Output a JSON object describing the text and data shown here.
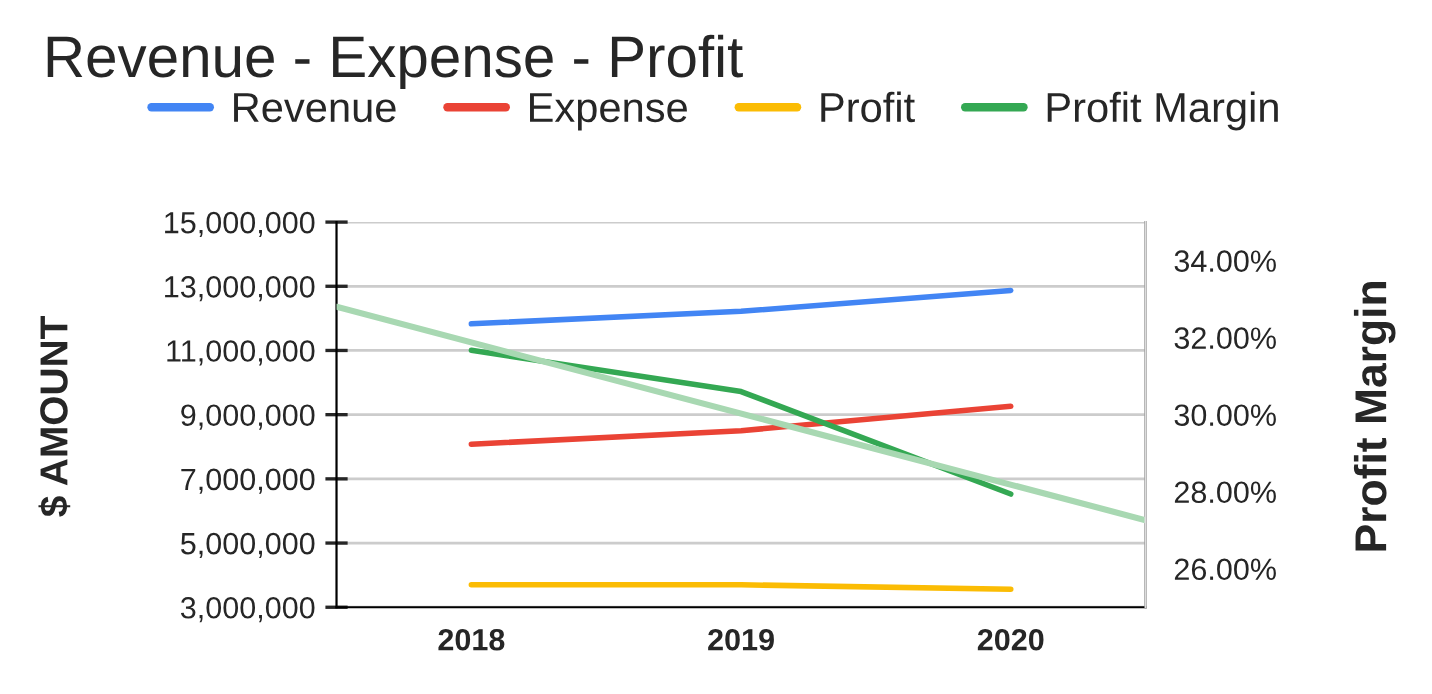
{
  "chart_data": {
    "type": "line",
    "title": "Revenue - Expense - Profit",
    "ylabel": "$ AMOUNT",
    "y2label": "Profit Margin",
    "x": [
      2018,
      2019,
      2020
    ],
    "xlim": [
      2017.5,
      2020.5
    ],
    "xticks": [
      2018,
      2019,
      2020
    ],
    "ylim": [
      3000000,
      15000000
    ],
    "yticks": [
      {
        "value": 3000000,
        "label": "3,000,000"
      },
      {
        "value": 5000000,
        "label": "5,000,000"
      },
      {
        "value": 7000000,
        "label": "7,000,000"
      },
      {
        "value": 9000000,
        "label": "9,000,000"
      },
      {
        "value": 11000000,
        "label": "11,000,000"
      },
      {
        "value": 13000000,
        "label": "13,000,000"
      },
      {
        "value": 15000000,
        "label": "15,000,000"
      }
    ],
    "y2lim": [
      25,
      35
    ],
    "y2ticks": [
      {
        "value": 26,
        "label": "26.00%"
      },
      {
        "value": 28,
        "label": "28.00%"
      },
      {
        "value": 30,
        "label": "30.00%"
      },
      {
        "value": 32,
        "label": "32.00%"
      },
      {
        "value": 34,
        "label": "34.00%"
      }
    ],
    "grid": "y",
    "legend": "top",
    "marker": "none",
    "line_style": "solid",
    "series": [
      {
        "name": "Revenue",
        "color": "#4285f4",
        "values": [
          11830000,
          12220000,
          12870000
        ]
      },
      {
        "name": "Expense",
        "color": "#ea4335",
        "values": [
          8080000,
          8500000,
          9260000
        ]
      },
      {
        "name": "Profit",
        "color": "#fbbc04",
        "values": [
          3700000,
          3700000,
          3560000
        ]
      },
      {
        "name": "Profit Margin",
        "color": "#34a853",
        "axis": "y2",
        "values": [
          31.67,
          30.6,
          27.94
        ]
      },
      {
        "color": "#a8d8b2",
        "axis": "y2",
        "x": [
          2017.5,
          2020.5
        ],
        "values": [
          32.8,
          27.26
        ]
      }
    ]
  }
}
